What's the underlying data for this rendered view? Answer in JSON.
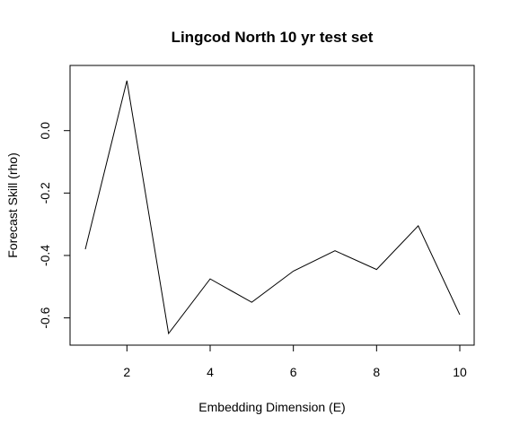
{
  "chart_data": {
    "type": "line",
    "title": "Lingcod North 10 yr test set",
    "xlabel": "Embedding Dimension (E)",
    "ylabel": "Forecast Skill (rho)",
    "x": [
      1,
      2,
      3,
      4,
      5,
      6,
      7,
      8,
      9,
      10
    ],
    "y": [
      -0.38,
      0.16,
      -0.65,
      -0.475,
      -0.55,
      -0.45,
      -0.385,
      -0.445,
      -0.305,
      -0.59
    ],
    "xlim": [
      1,
      10
    ],
    "ylim": [
      -0.65,
      0.16
    ],
    "x_ticks": [
      2,
      4,
      6,
      8,
      10
    ],
    "y_ticks": [
      -0.6,
      -0.4,
      -0.2,
      0.0
    ],
    "x_tick_labels": [
      "2",
      "4",
      "6",
      "8",
      "10"
    ],
    "y_tick_labels": [
      "-0.6",
      "-0.4",
      "-0.2",
      "0.0"
    ],
    "line_color": "#000000",
    "grid": false,
    "legend": "none"
  }
}
